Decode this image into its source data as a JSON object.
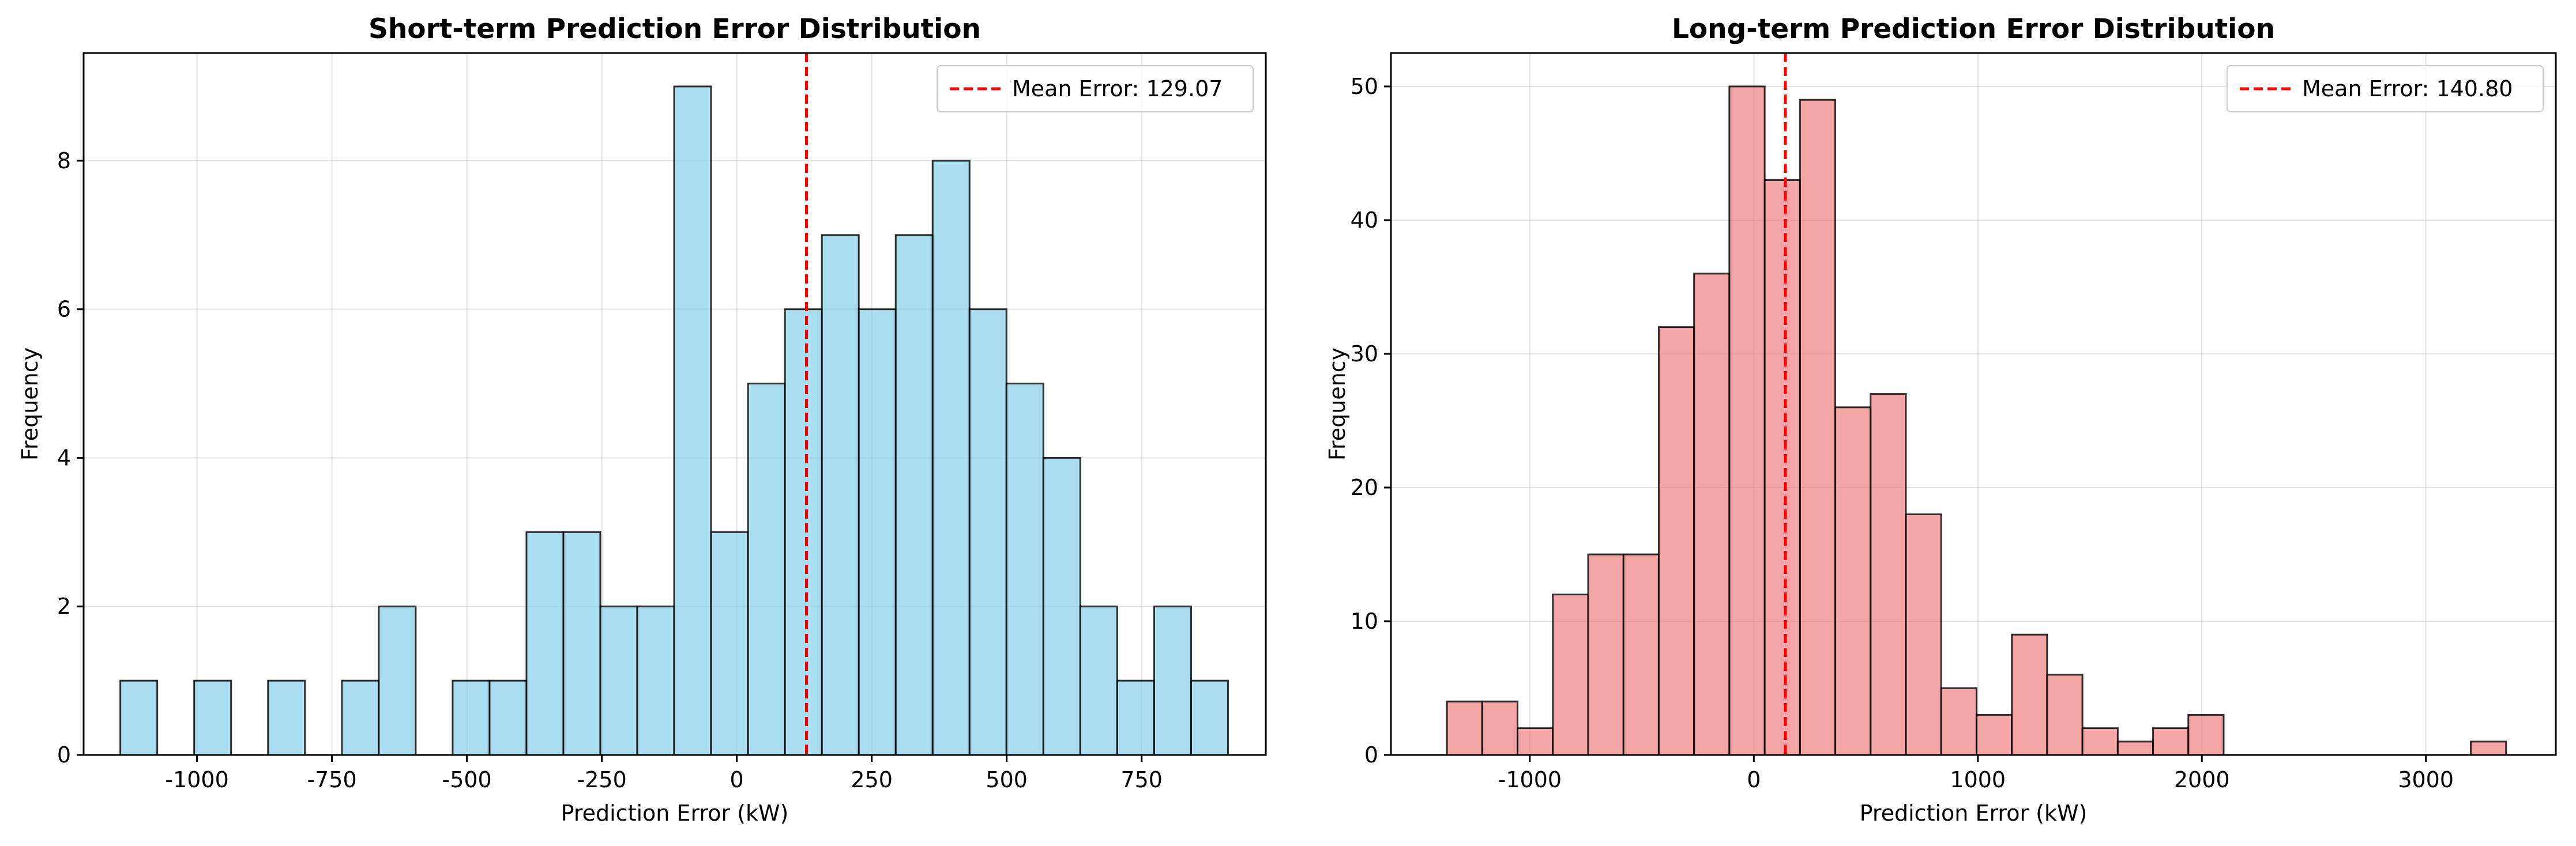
{
  "chart_data": [
    {
      "type": "bar",
      "subtype": "histogram",
      "title": "Short-term Prediction Error Distribution",
      "xlabel": "Prediction Error (kW)",
      "ylabel": "Frequency",
      "xlim": [
        -1210,
        980
      ],
      "ylim": [
        0,
        9.45
      ],
      "xticks": [
        -1000,
        -750,
        -500,
        -250,
        0,
        250,
        500,
        750
      ],
      "xtick_labels": [
        "-1000",
        "-750",
        "-500",
        "-250",
        "0",
        "250",
        "500",
        "750"
      ],
      "yticks": [
        0,
        2,
        4,
        6,
        8
      ],
      "ytick_labels": [
        "0",
        "2",
        "4",
        "6",
        "8"
      ],
      "bins": {
        "start": -1142,
        "width": 68.4
      },
      "values": [
        1,
        0,
        1,
        0,
        1,
        0,
        1,
        2,
        0,
        1,
        1,
        3,
        3,
        2,
        2,
        9,
        3,
        5,
        6,
        7,
        6,
        7,
        8,
        6,
        5,
        4,
        2,
        1,
        2,
        1
      ],
      "bar_color": "#87CEEB",
      "edge_color": "#000000",
      "mean_line": {
        "value": 129.07,
        "label": "Mean Error: 129.07",
        "color": "#FF0000",
        "style": "dashed"
      },
      "grid": true,
      "legend": "top-right"
    },
    {
      "type": "bar",
      "subtype": "histogram",
      "title": "Long-term Prediction Error Distribution",
      "xlabel": "Prediction Error (kW)",
      "ylabel": "Frequency",
      "xlim": [
        -1620,
        3580
      ],
      "ylim": [
        0,
        52.5
      ],
      "xticks": [
        -1000,
        0,
        1000,
        2000,
        3000
      ],
      "xtick_labels": [
        "-1000",
        "0",
        "1000",
        "2000",
        "3000"
      ],
      "yticks": [
        0,
        10,
        20,
        30,
        40,
        50
      ],
      "ytick_labels": [
        "0",
        "10",
        "20",
        "30",
        "40",
        "50"
      ],
      "bins": {
        "start": -1370,
        "width": 157.6
      },
      "values": [
        4,
        4,
        2,
        12,
        15,
        15,
        32,
        36,
        50,
        43,
        49,
        26,
        27,
        18,
        5,
        3,
        9,
        6,
        2,
        1,
        2,
        3,
        0,
        0,
        0,
        0,
        0,
        0,
        0,
        1
      ],
      "bar_color": "#F08080",
      "edge_color": "#000000",
      "mean_line": {
        "value": 140.8,
        "label": "Mean Error: 140.80",
        "color": "#FF0000",
        "style": "dashed"
      },
      "grid": true,
      "legend": "top-right"
    }
  ]
}
